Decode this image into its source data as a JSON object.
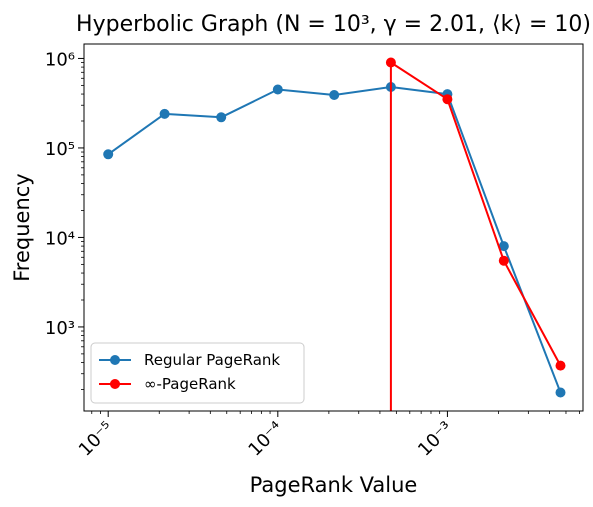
{
  "chart_data": {
    "type": "line",
    "title": "Hyperbolic Graph (N = 10³, γ = 2.01, ⟨k⟩ = 10)",
    "xlabel": "PageRank Value",
    "ylabel": "Frequency",
    "xscale": "log",
    "yscale": "log",
    "xlim": [
      7.2e-06,
      0.0063
    ],
    "ylim": [
      115,
      1450000
    ],
    "x_ticks": [
      {
        "value": 1e-05,
        "label": "10⁻⁵"
      },
      {
        "value": 0.0001,
        "label": "10⁻⁴"
      },
      {
        "value": 0.001,
        "label": "10⁻³"
      }
    ],
    "y_ticks": [
      {
        "value": 1000,
        "label": "10³"
      },
      {
        "value": 10000,
        "label": "10⁴"
      },
      {
        "value": 100000,
        "label": "10⁵"
      },
      {
        "value": 1000000,
        "label": "10⁶"
      }
    ],
    "grid": false,
    "legend_position": "lower left",
    "series": [
      {
        "name": "Regular PageRank",
        "color": "#1f77b4",
        "x": [
          1e-05,
          2.15e-05,
          4.64e-05,
          0.0001,
          0.000215,
          0.000464,
          0.001,
          0.00215,
          0.00464
        ],
        "y": [
          85000,
          240000,
          220000,
          450000,
          390000,
          480000,
          400000,
          8000,
          185
        ]
      },
      {
        "name": "∞-PageRank",
        "color": "#ff0000",
        "x": [
          0.000464,
          0.001,
          0.00215,
          0.00464
        ],
        "y": [
          900000,
          350000,
          5500,
          370
        ],
        "drop_to_floor_at": 0.000464
      }
    ]
  }
}
